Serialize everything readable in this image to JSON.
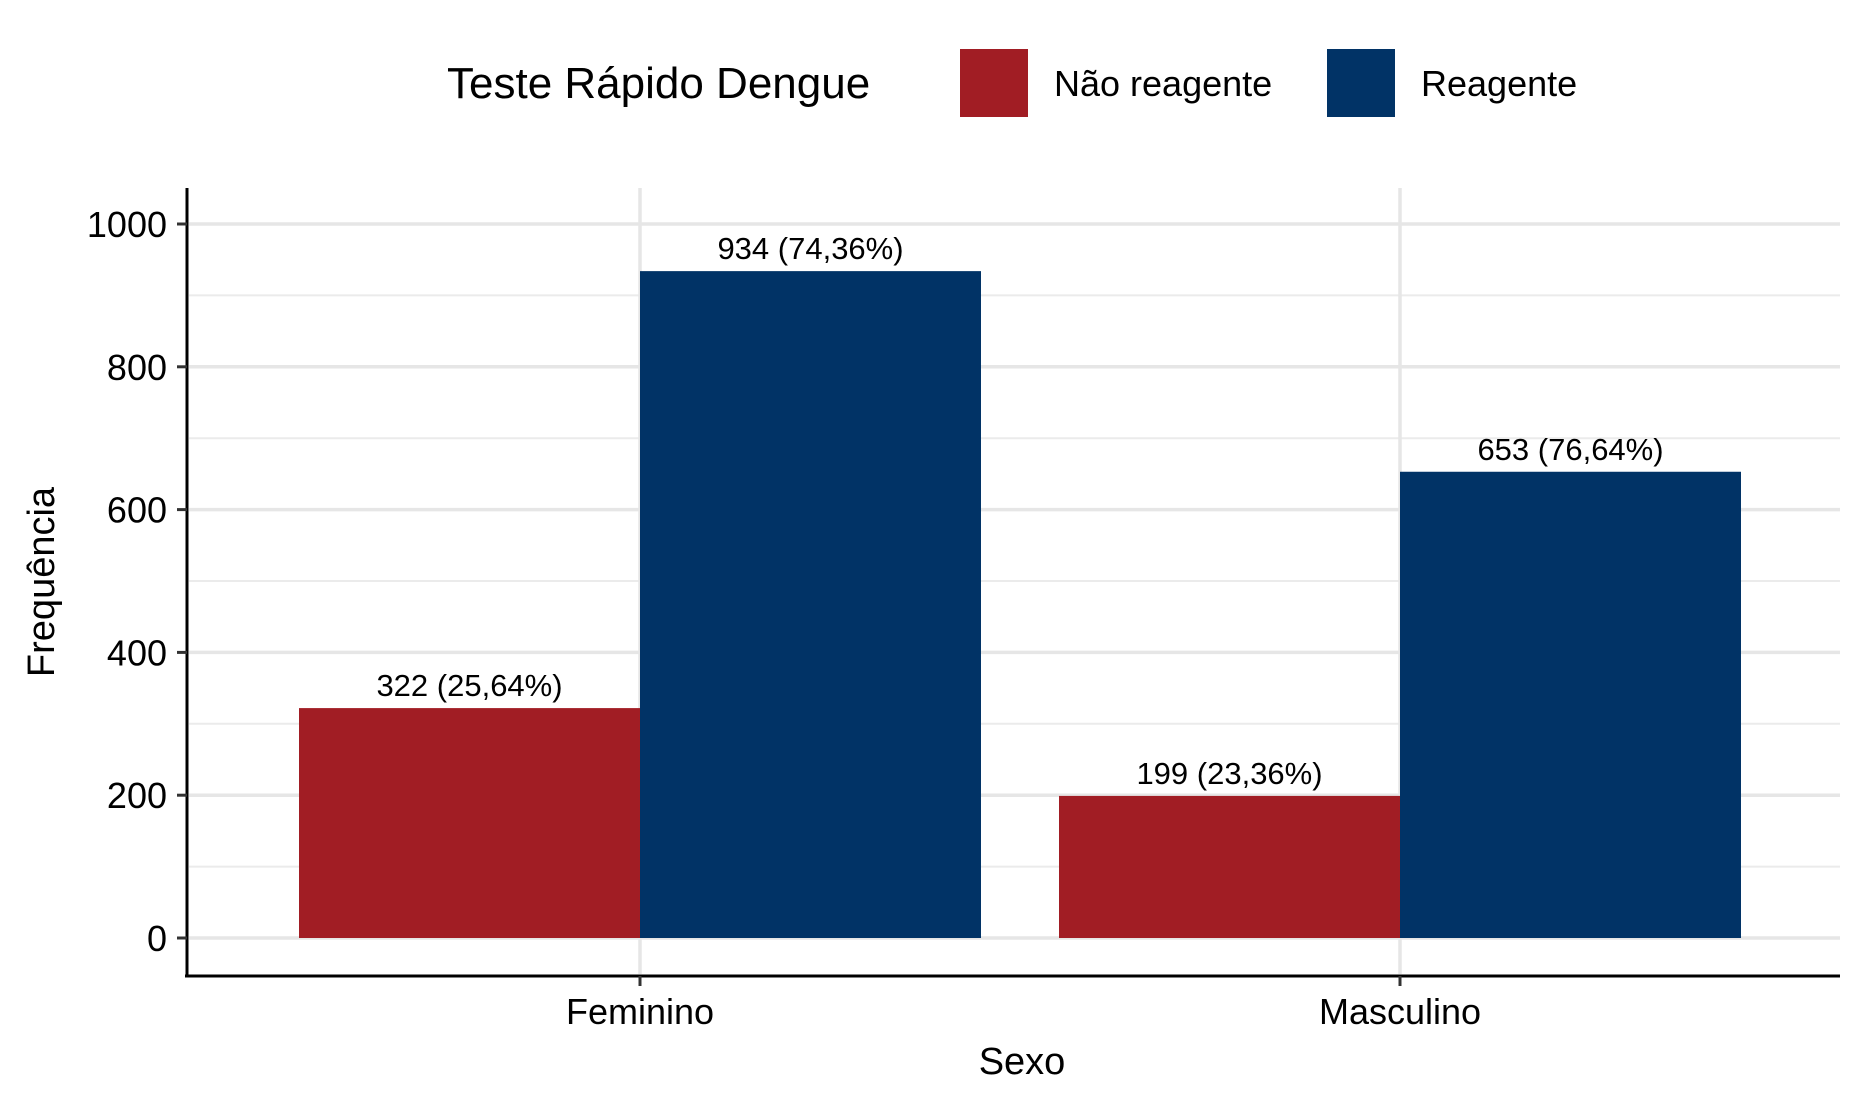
{
  "chart_data": {
    "type": "bar",
    "categories": [
      "Feminino",
      "Masculino"
    ],
    "series": [
      {
        "name": "Não reagente",
        "color": "#A11D24",
        "values": [
          322,
          199
        ],
        "labels": [
          "322 (25,64%)",
          "199 (23,36%)"
        ]
      },
      {
        "name": "Reagente",
        "color": "#013366",
        "values": [
          934,
          653
        ],
        "labels": [
          "934 (74,36%)",
          "653 (76,64%)"
        ]
      }
    ],
    "legend_title": "Teste Rápido Dengue",
    "legend_position": "top",
    "xlabel": "Sexo",
    "ylabel": "Frequência",
    "ylim": [
      0,
      1050
    ],
    "yticks": [
      0,
      200,
      400,
      600,
      800,
      1000
    ],
    "grid": true
  }
}
